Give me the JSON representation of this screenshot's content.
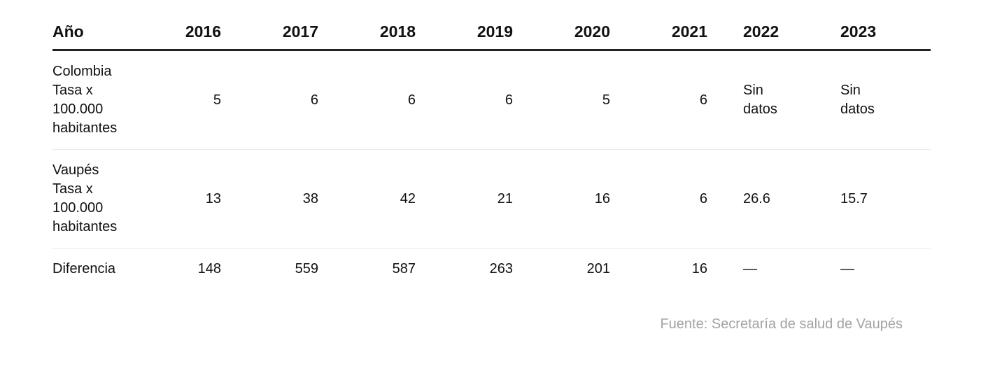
{
  "chart_data": {
    "type": "table",
    "columns": [
      "Año",
      "2016",
      "2017",
      "2018",
      "2019",
      "2020",
      "2021",
      "2022",
      "2023"
    ],
    "rows": [
      {
        "label": "Colombia Tasa x 100.000 habitantes",
        "values": [
          "5",
          "6",
          "6",
          "6",
          "5",
          "6",
          "Sin datos",
          "Sin datos"
        ]
      },
      {
        "label": "Vaupés Tasa x 100.000 habitantes",
        "values": [
          "13",
          "38",
          "42",
          "21",
          "16",
          "6",
          "26.6",
          "15.7"
        ]
      },
      {
        "label": "Diferencia",
        "values": [
          "148",
          "559",
          "587",
          "263",
          "201",
          "16",
          "—",
          "—"
        ]
      }
    ],
    "source": "Fuente: Secretaría de salud de Vaupés"
  },
  "table": {
    "header": {
      "label": "Año",
      "y2016": "2016",
      "y2017": "2017",
      "y2018": "2018",
      "y2019": "2019",
      "y2020": "2020",
      "y2021": "2021",
      "y2022": "2022",
      "y2023": "2023"
    },
    "colombia": {
      "label_l1": "Colombia",
      "label_l2": "Tasa x",
      "label_l3": "100.000",
      "label_l4": "habitantes",
      "v2016": "5",
      "v2017": "6",
      "v2018": "6",
      "v2019": "6",
      "v2020": "5",
      "v2021": "6",
      "v2022_l1": "Sin",
      "v2022_l2": "datos",
      "v2023_l1": "Sin",
      "v2023_l2": "datos"
    },
    "vaupes": {
      "label_l1": "Vaupés",
      "label_l2": "Tasa x",
      "label_l3": "100.000",
      "label_l4": "habitantes",
      "v2016": "13",
      "v2017": "38",
      "v2018": "42",
      "v2019": "21",
      "v2020": "16",
      "v2021": "6",
      "v2022": "26.6",
      "v2023": "15.7"
    },
    "diferencia": {
      "label": "Diferencia",
      "v2016": "148",
      "v2017": "559",
      "v2018": "587",
      "v2019": "263",
      "v2020": "201",
      "v2021": "16",
      "v2022": "—",
      "v2023": "—"
    }
  },
  "footer": {
    "source": "Fuente: Secretaría de salud de Vaupés"
  }
}
